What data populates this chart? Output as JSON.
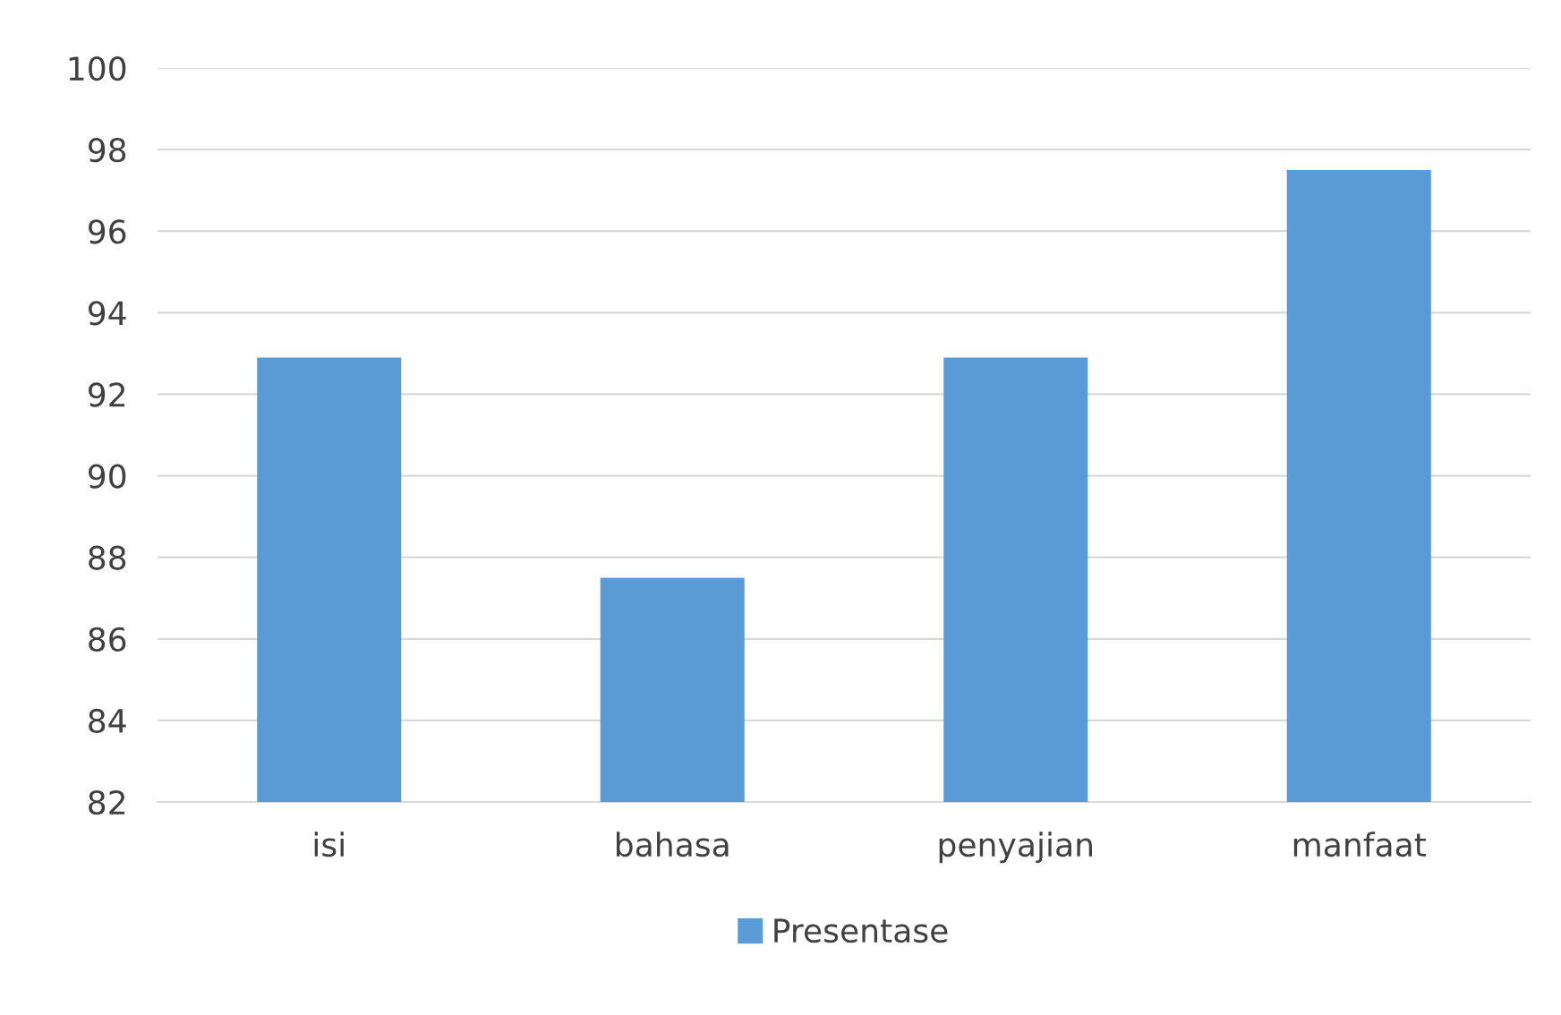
{
  "chart_data": {
    "type": "bar",
    "categories": [
      "isi",
      "bahasa",
      "penyajian",
      "manfaat"
    ],
    "series": [
      {
        "name": "Presentase",
        "color": "#5b9bd5",
        "values": [
          92.9,
          87.5,
          92.9,
          97.5
        ]
      }
    ],
    "ylim": [
      82,
      100
    ],
    "yticks": [
      82,
      84,
      86,
      88,
      90,
      92,
      94,
      96,
      98,
      100
    ],
    "grid": "y",
    "legend": "bottom"
  }
}
